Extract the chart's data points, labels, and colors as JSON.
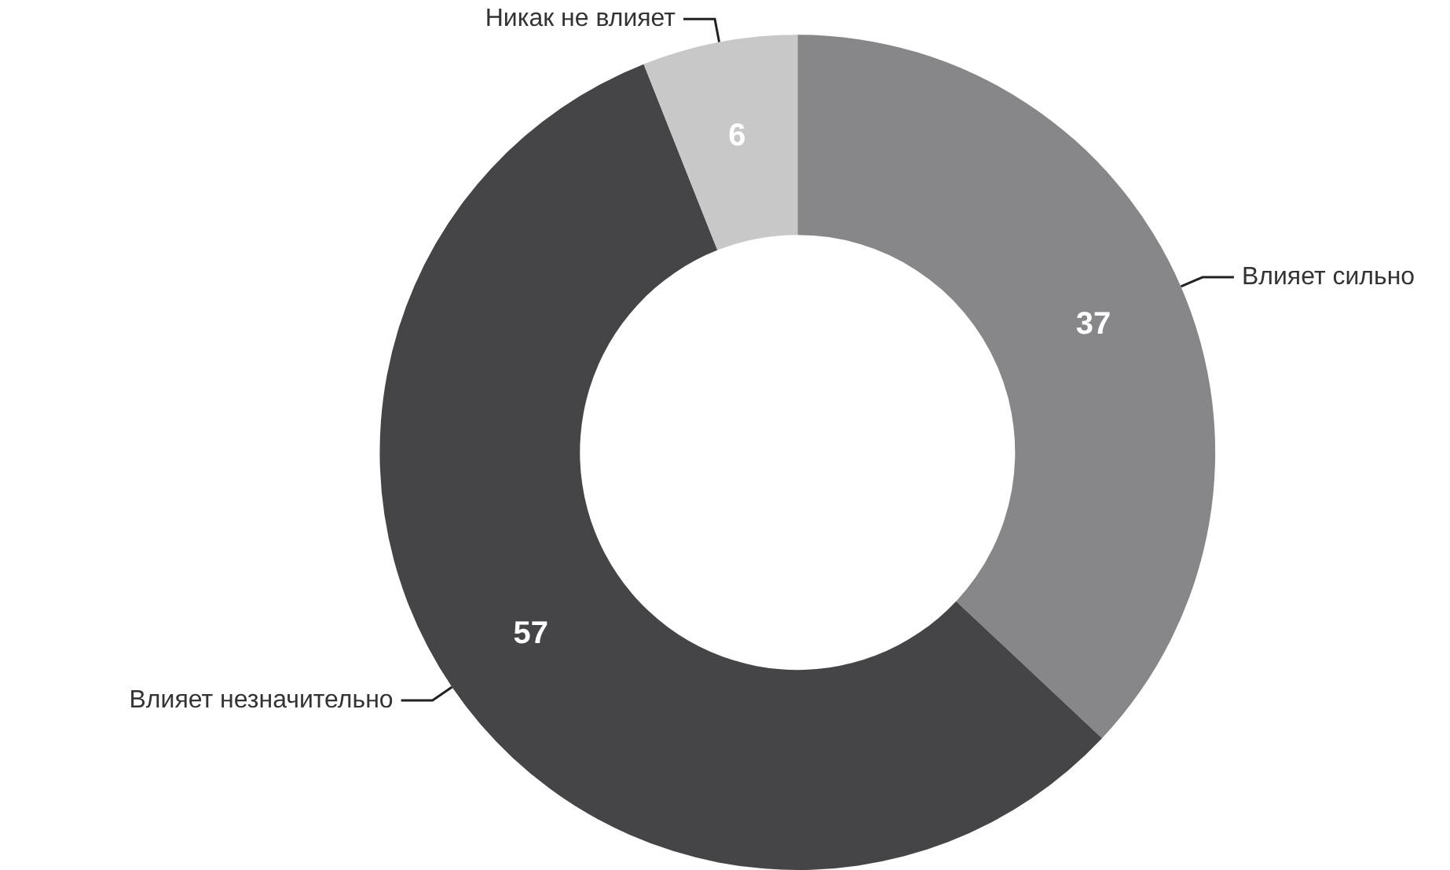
{
  "chart_data": {
    "type": "donut",
    "categories": [
      "Влияет сильно",
      "Влияет незначительно",
      "Никак не влияет"
    ],
    "values": [
      37,
      57,
      6
    ],
    "colors": [
      "#87878a",
      "#454548",
      "#c8c8c8"
    ],
    "data_labels": true,
    "legend": false
  }
}
